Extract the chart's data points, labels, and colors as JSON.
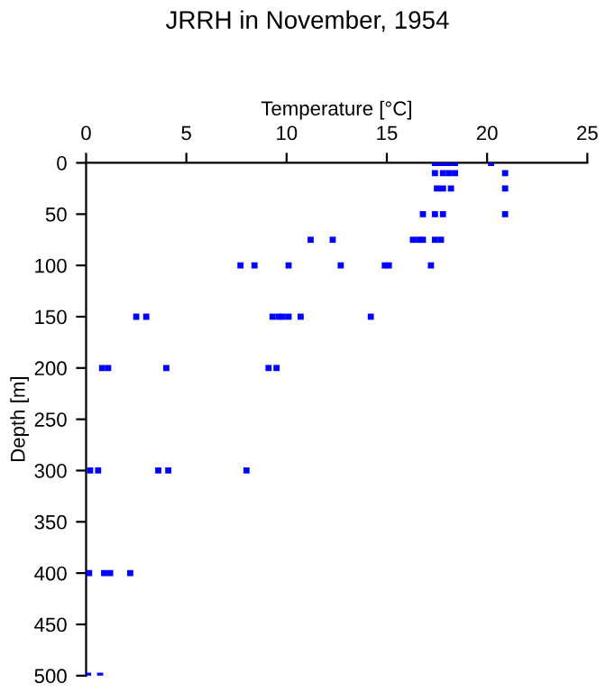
{
  "chart_data": {
    "type": "scatter",
    "title": "JRRH in November, 1954",
    "xlabel": "Temperature [°C]",
    "ylabel": "Depth [m]",
    "series": [
      {
        "color": "#0000ff",
        "x": [
          17.4,
          17.6,
          17.9,
          18.1,
          18.4,
          20.2,
          17.4,
          17.8,
          18.1,
          18.4,
          20.9,
          17.5,
          17.8,
          18.2,
          20.9,
          16.8,
          17.4,
          17.8,
          20.9,
          11.2,
          12.3,
          16.3,
          16.6,
          16.8,
          17.4,
          17.7,
          7.7,
          8.4,
          10.1,
          12.7,
          14.9,
          15.1,
          17.2,
          2.5,
          3.0,
          9.3,
          9.6,
          9.8,
          10.1,
          10.7,
          14.2,
          0.8,
          1.1,
          4.0,
          9.1,
          9.5,
          0.2,
          0.6,
          3.6,
          4.1,
          8.0,
          0.15,
          0.9,
          1.2,
          2.2,
          0.1,
          0.7
        ],
        "values": [
          0,
          0,
          0,
          0,
          0,
          0,
          10,
          10,
          10,
          10,
          10,
          25,
          25,
          25,
          25,
          50,
          50,
          50,
          50,
          75,
          75,
          75,
          75,
          75,
          75,
          75,
          100,
          100,
          100,
          100,
          100,
          100,
          100,
          150,
          150,
          150,
          150,
          150,
          150,
          150,
          150,
          200,
          200,
          200,
          200,
          200,
          300,
          300,
          300,
          300,
          300,
          400,
          400,
          400,
          400,
          500,
          500
        ]
      }
    ],
    "xlim": [
      0,
      25
    ],
    "xticks": [
      0,
      5,
      10,
      15,
      20,
      25
    ],
    "ylim": [
      500,
      0
    ],
    "yticks": [
      0,
      50,
      100,
      150,
      200,
      250,
      300,
      350,
      400,
      450,
      500
    ],
    "marker": "square",
    "grid": false,
    "legend": false
  }
}
